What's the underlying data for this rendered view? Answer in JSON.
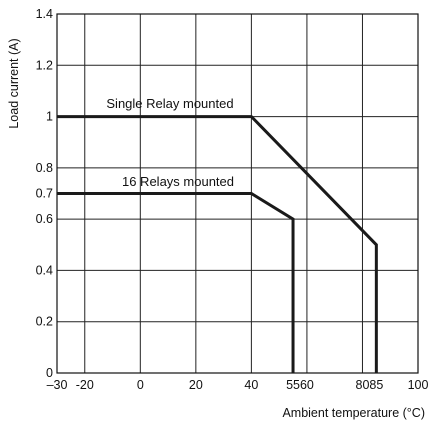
{
  "chart_data": {
    "type": "line",
    "xlabel": "Ambient temperature (°C)",
    "ylabel": "Load current (A)",
    "xlim": [
      -30,
      100
    ],
    "ylim": [
      0,
      1.4
    ],
    "x_ticks": [
      -30,
      -20,
      0,
      20,
      40,
      55,
      60,
      80,
      85,
      100
    ],
    "x_tick_labels": [
      "–30",
      "-20",
      "0",
      "20",
      "40",
      "55",
      "60",
      "80",
      "85",
      "100"
    ],
    "x_grid": [
      -20,
      0,
      20,
      40,
      60,
      80
    ],
    "y_ticks": [
      0,
      0.2,
      0.4,
      0.6,
      0.7,
      0.8,
      1,
      1.2,
      1.4
    ],
    "y_tick_labels": [
      "0",
      "0.2",
      "0.4",
      "0.6",
      "0.7",
      "0.8",
      "1",
      "1.2",
      "1.4"
    ],
    "y_grid": [
      0.2,
      0.4,
      0.6,
      0.8,
      1,
      1.2
    ],
    "grid": true,
    "series": [
      {
        "name": "Single Relay mounted",
        "x": [
          -30,
          40,
          85,
          85
        ],
        "y": [
          1,
          1,
          0.5,
          0
        ]
      },
      {
        "name": "16 Relays mounted",
        "x": [
          -30,
          40,
          55,
          55
        ],
        "y": [
          0.7,
          0.7,
          0.6,
          0
        ]
      }
    ]
  }
}
